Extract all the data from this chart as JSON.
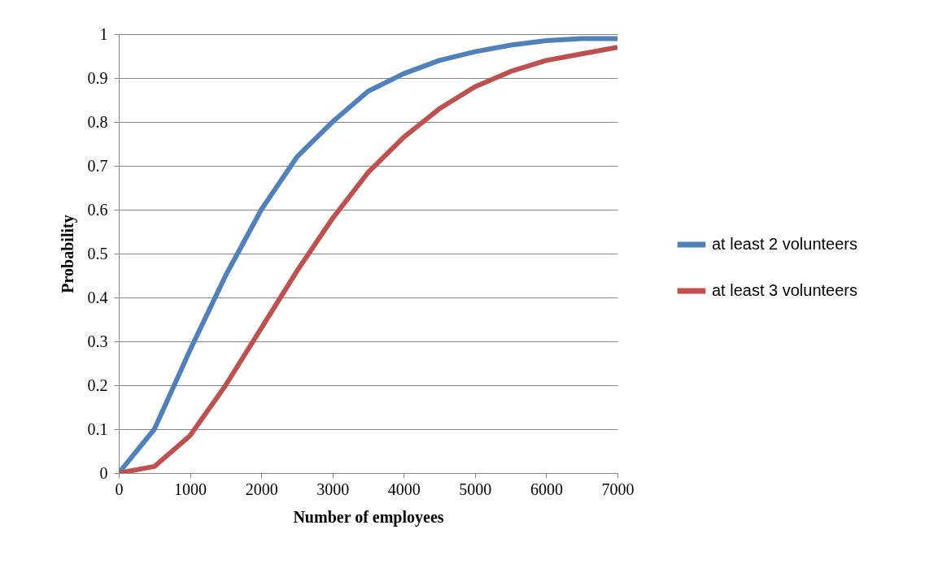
{
  "chart_data": {
    "type": "line",
    "xlabel": "Number of employees",
    "ylabel": "Probability",
    "x": [
      0,
      500,
      1000,
      1500,
      2000,
      2500,
      3000,
      3500,
      4000,
      4500,
      5000,
      5500,
      6000,
      6500,
      7000
    ],
    "series": [
      {
        "name": "at least 2 volunteers",
        "color": "#4f81bd",
        "values": [
          0,
          0.1,
          0.28,
          0.45,
          0.6,
          0.72,
          0.8,
          0.87,
          0.91,
          0.94,
          0.96,
          0.975,
          0.985,
          0.99,
          0.99
        ]
      },
      {
        "name": "at least 3 volunteers",
        "color": "#c0504d",
        "values": [
          0,
          0.015,
          0.085,
          0.2,
          0.33,
          0.46,
          0.58,
          0.685,
          0.765,
          0.83,
          0.88,
          0.915,
          0.94,
          0.955,
          0.97
        ]
      }
    ],
    "xlim": [
      0,
      7000
    ],
    "xticks": [
      0,
      1000,
      2000,
      3000,
      4000,
      5000,
      6000,
      7000
    ],
    "ylim": [
      0,
      1
    ],
    "yticks": [
      0,
      0.1,
      0.2,
      0.3,
      0.4,
      0.5,
      0.6,
      0.7,
      0.8,
      0.9,
      1
    ],
    "grid": "y",
    "legend": "right",
    "marker": "none",
    "line_style": "solid"
  }
}
